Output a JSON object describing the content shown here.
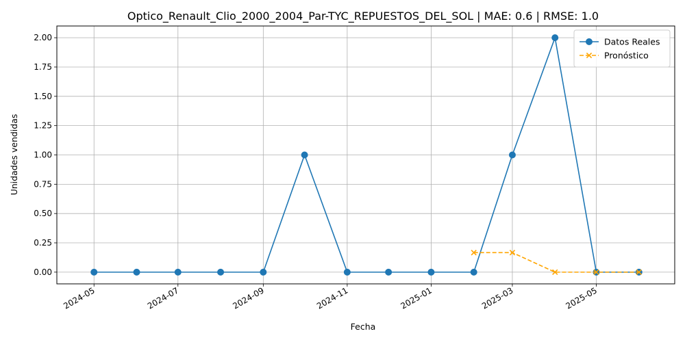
{
  "chart_data": {
    "type": "line",
    "title": "Optico_Renault_Clio_2000_2004_Par-TYC_REPUESTOS_DEL_SOL | MAE: 0.6 | RMSE: 1.0",
    "xlabel": "Fecha",
    "ylabel": "Unidades vendidas",
    "xlim": [
      "2024-04-04",
      "2025-06-27"
    ],
    "ylim": [
      -0.1,
      2.1
    ],
    "grid": true,
    "legend_position": "top-right",
    "x_ticks": [
      "2024-05",
      "2024-07",
      "2024-09",
      "2024-11",
      "2025-01",
      "2025-03",
      "2025-05"
    ],
    "y_ticks": [
      "0.00",
      "0.25",
      "0.50",
      "0.75",
      "1.00",
      "1.25",
      "1.50",
      "1.75",
      "2.00"
    ],
    "series": [
      {
        "name": "Datos Reales",
        "color": "#1f77b4",
        "style": "solid",
        "marker": "circle",
        "points": [
          {
            "x": "2024-05-01",
            "y": 0
          },
          {
            "x": "2024-06-01",
            "y": 0
          },
          {
            "x": "2024-07-01",
            "y": 0
          },
          {
            "x": "2024-08-01",
            "y": 0
          },
          {
            "x": "2024-09-01",
            "y": 0
          },
          {
            "x": "2024-10-01",
            "y": 1
          },
          {
            "x": "2024-11-01",
            "y": 0
          },
          {
            "x": "2024-12-01",
            "y": 0
          },
          {
            "x": "2025-01-01",
            "y": 0
          },
          {
            "x": "2025-02-01",
            "y": 0
          },
          {
            "x": "2025-03-01",
            "y": 1
          },
          {
            "x": "2025-04-01",
            "y": 2
          },
          {
            "x": "2025-05-01",
            "y": 0
          },
          {
            "x": "2025-06-01",
            "y": 0
          }
        ]
      },
      {
        "name": "Pronóstico",
        "color": "#ffa500",
        "style": "dashed",
        "marker": "x",
        "points": [
          {
            "x": "2025-02-01",
            "y": 0.1667
          },
          {
            "x": "2025-03-01",
            "y": 0.1667
          },
          {
            "x": "2025-04-01",
            "y": 0
          },
          {
            "x": "2025-05-01",
            "y": 0
          },
          {
            "x": "2025-06-01",
            "y": 0
          }
        ]
      }
    ]
  }
}
